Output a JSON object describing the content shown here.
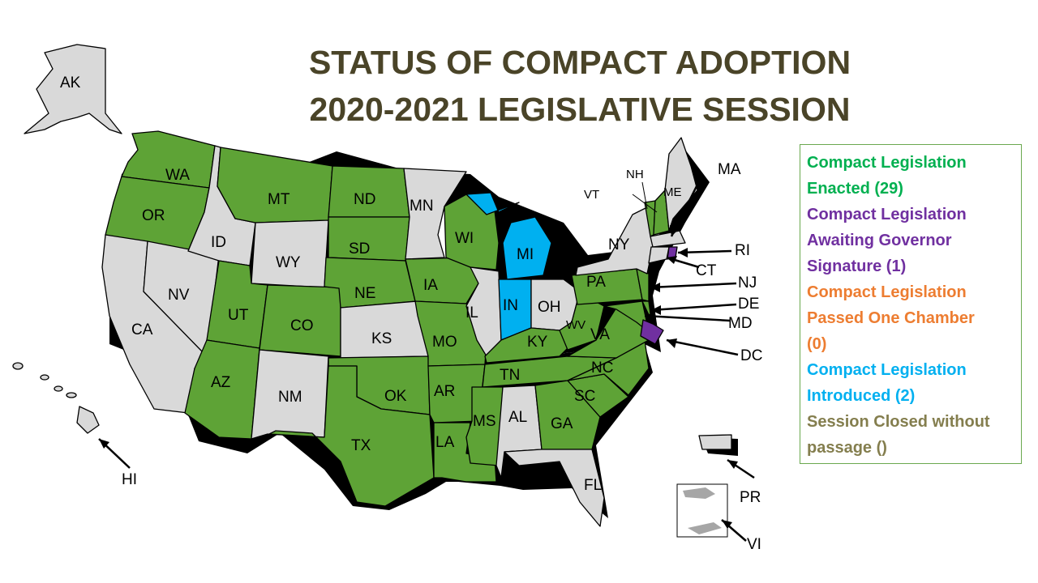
{
  "title": {
    "line1": "STATUS OF COMPACT ADOPTION",
    "line2": "2020-2021 LEGISLATIVE SESSION"
  },
  "colors": {
    "enacted": "#5ea336",
    "awaiting": "#7030a0",
    "passed_one": "#ed7d31",
    "introduced": "#00b0f0",
    "closed": "#847e4e",
    "none": "#d9d9d9",
    "title": "#4a4428"
  },
  "legend": {
    "items": [
      {
        "key": "enacted",
        "text": "Compact Legislation\nEnacted (29)",
        "color": "#00b050"
      },
      {
        "key": "awaiting",
        "text": "Compact Legislation\nAwaiting Governor\nSignature (1)",
        "color": "#7030a0"
      },
      {
        "key": "passed_one",
        "text": "Compact Legislation\nPassed One Chamber\n(0)",
        "color": "#ed7d31"
      },
      {
        "key": "introduced",
        "text": "Compact Legislation\nIntroduced (2)",
        "color": "#00b0f0"
      },
      {
        "key": "closed",
        "text": "Session Closed without\npassage ()",
        "color": "#847e4e"
      }
    ]
  },
  "states": {
    "AK": "AK",
    "HI": "HI",
    "WA": "WA",
    "OR": "OR",
    "CA": "CA",
    "NV": "NV",
    "ID": "ID",
    "MT": "MT",
    "WY": "WY",
    "UT": "UT",
    "AZ": "AZ",
    "CO": "CO",
    "NM": "NM",
    "ND": "ND",
    "SD": "SD",
    "NE": "NE",
    "KS": "KS",
    "OK": "OK",
    "TX": "TX",
    "MN": "MN",
    "IA": "IA",
    "MO": "MO",
    "AR": "AR",
    "LA": "LA",
    "WI": "WI",
    "IL": "IL",
    "MI": "MI",
    "IN": "IN",
    "OH": "OH",
    "KY": "KY",
    "TN": "TN",
    "MS": "MS",
    "AL": "AL",
    "GA": "GA",
    "FL": "FL",
    "SC": "SC",
    "NC": "NC",
    "VA": "VA",
    "WV": "WV",
    "PA": "PA",
    "NY": "NY",
    "VT": "VT",
    "NH": "NH",
    "ME": "ME",
    "MA": "MA",
    "RI": "RI",
    "CT": "CT",
    "NJ": "NJ",
    "DE": "DE",
    "MD": "MD",
    "DC": "DC",
    "PR": "PR",
    "VI": "VI"
  }
}
